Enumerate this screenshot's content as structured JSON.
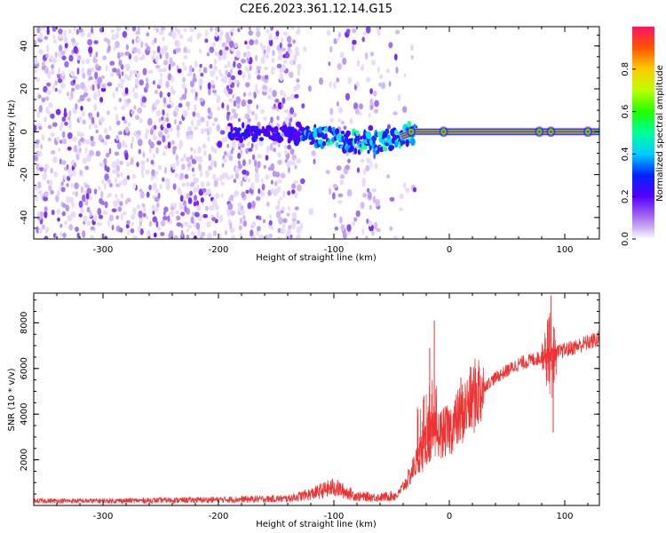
{
  "figure": {
    "title": "C2E6.2023.361.12.14.G15"
  },
  "chart_data": [
    {
      "type": "heatmap",
      "xlabel": "Height of straight line (km)",
      "ylabel": "Frequency (Hz)",
      "xlim": [
        -360,
        130
      ],
      "ylim": [
        -50,
        49
      ],
      "x_ticks": [
        "-300",
        "-200",
        "-100",
        "0",
        "100"
      ],
      "x_tick_values": [
        -300,
        -200,
        -100,
        0,
        100
      ],
      "y_ticks": [
        "-40",
        "-20",
        "0",
        "20",
        "40"
      ],
      "y_tick_values": [
        -40,
        -20,
        0,
        20,
        40
      ],
      "colorbar": {
        "label": "Normalized spectral amplitude",
        "range": [
          0,
          1
        ],
        "ticks": [
          "0.0",
          "0.2",
          "0.4",
          "0.6",
          "0.8"
        ],
        "tick_values": [
          0,
          0.2,
          0.4,
          0.6,
          0.8
        ]
      },
      "signal_track": [
        {
          "x": -190,
          "y": 0
        },
        {
          "x": -160,
          "y": -1
        },
        {
          "x": -140,
          "y": 0
        },
        {
          "x": -120,
          "y": -2
        },
        {
          "x": -100,
          "y": -3
        },
        {
          "x": -80,
          "y": -5
        },
        {
          "x": -60,
          "y": -5
        },
        {
          "x": -45,
          "y": -3
        },
        {
          "x": -30,
          "y": 0
        },
        {
          "x": 0,
          "y": 0
        },
        {
          "x": 80,
          "y": 0
        },
        {
          "x": 130,
          "y": 0
        }
      ],
      "noise_regions": [
        {
          "x_from": -360,
          "x_to": -130,
          "density": 1.0
        },
        {
          "x_from": -130,
          "x_to": -118,
          "density": 0.15
        },
        {
          "x_from": -118,
          "x_to": -105,
          "density": 0.05
        },
        {
          "x_from": -105,
          "x_to": -60,
          "density": 0.45
        },
        {
          "x_from": -60,
          "x_to": -30,
          "density": 0.1
        }
      ],
      "grid": false
    },
    {
      "type": "line",
      "xlabel": "Height of straight line (km)",
      "ylabel": "SNR (10 * v/v)",
      "xlim": [
        -360,
        130
      ],
      "ylim": [
        0,
        9300
      ],
      "x_ticks": [
        "-300",
        "-200",
        "-100",
        "0",
        "100"
      ],
      "x_tick_values": [
        -300,
        -200,
        -100,
        0,
        100
      ],
      "y_ticks": [
        "2000",
        "4000",
        "6000",
        "8000"
      ],
      "y_tick_values": [
        2000,
        4000,
        6000,
        8000
      ],
      "series": [
        {
          "color": "#ee3333",
          "envelope": [
            {
              "x": -360,
              "y": 200
            },
            {
              "x": -300,
              "y": 200
            },
            {
              "x": -200,
              "y": 250
            },
            {
              "x": -140,
              "y": 300
            },
            {
              "x": -120,
              "y": 500
            },
            {
              "x": -100,
              "y": 800
            },
            {
              "x": -90,
              "y": 600
            },
            {
              "x": -80,
              "y": 400
            },
            {
              "x": -60,
              "y": 350
            },
            {
              "x": -45,
              "y": 450
            },
            {
              "x": -35,
              "y": 1200
            },
            {
              "x": -25,
              "y": 2300
            },
            {
              "x": -15,
              "y": 3000
            },
            {
              "x": 0,
              "y": 3300
            },
            {
              "x": 15,
              "y": 4300
            },
            {
              "x": 25,
              "y": 5000
            },
            {
              "x": 40,
              "y": 5600
            },
            {
              "x": 60,
              "y": 6200
            },
            {
              "x": 80,
              "y": 6500
            },
            {
              "x": 100,
              "y": 6800
            },
            {
              "x": 130,
              "y": 7300
            }
          ],
          "spikes": [
            {
              "x": -13,
              "y": 8100
            },
            {
              "x": -17,
              "y": 6900
            },
            {
              "x": -22,
              "y": 4800
            },
            {
              "x": 10,
              "y": 5600
            },
            {
              "x": 88,
              "y": 9200
            },
            {
              "x": 90,
              "y": 3200
            },
            {
              "x": 85,
              "y": 8000
            }
          ]
        }
      ],
      "grid": false
    }
  ]
}
